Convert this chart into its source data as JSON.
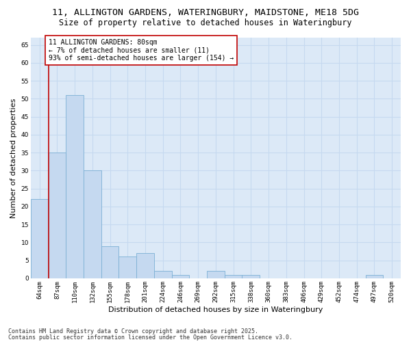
{
  "title_line1": "11, ALLINGTON GARDENS, WATERINGBURY, MAIDSTONE, ME18 5DG",
  "title_line2": "Size of property relative to detached houses in Wateringbury",
  "xlabel": "Distribution of detached houses by size in Wateringbury",
  "ylabel": "Number of detached properties",
  "categories": [
    "64sqm",
    "87sqm",
    "110sqm",
    "132sqm",
    "155sqm",
    "178sqm",
    "201sqm",
    "224sqm",
    "246sqm",
    "269sqm",
    "292sqm",
    "315sqm",
    "338sqm",
    "360sqm",
    "383sqm",
    "406sqm",
    "429sqm",
    "452sqm",
    "474sqm",
    "497sqm",
    "520sqm"
  ],
  "values": [
    22,
    35,
    51,
    30,
    9,
    6,
    7,
    2,
    1,
    0,
    2,
    1,
    1,
    0,
    0,
    0,
    0,
    0,
    0,
    1,
    0
  ],
  "bar_color": "#c5d9f0",
  "bar_edge_color": "#7bafd4",
  "red_line_x": 0.5,
  "highlight_line_color": "#c00000",
  "annotation_text": "11 ALLINGTON GARDENS: 80sqm\n← 7% of detached houses are smaller (11)\n93% of semi-detached houses are larger (154) →",
  "annotation_box_edge_color": "#c00000",
  "annotation_box_face_color": "#ffffff",
  "ylim": [
    0,
    67
  ],
  "yticks": [
    0,
    5,
    10,
    15,
    20,
    25,
    30,
    35,
    40,
    45,
    50,
    55,
    60,
    65
  ],
  "grid_color": "#c6d9f0",
  "plot_bg_color": "#dce9f7",
  "fig_bg_color": "#ffffff",
  "footer_line1": "Contains HM Land Registry data © Crown copyright and database right 2025.",
  "footer_line2": "Contains public sector information licensed under the Open Government Licence v3.0.",
  "title_fontsize": 9.5,
  "subtitle_fontsize": 8.5,
  "axis_label_fontsize": 8,
  "tick_fontsize": 6.5,
  "annotation_fontsize": 7,
  "footer_fontsize": 6
}
